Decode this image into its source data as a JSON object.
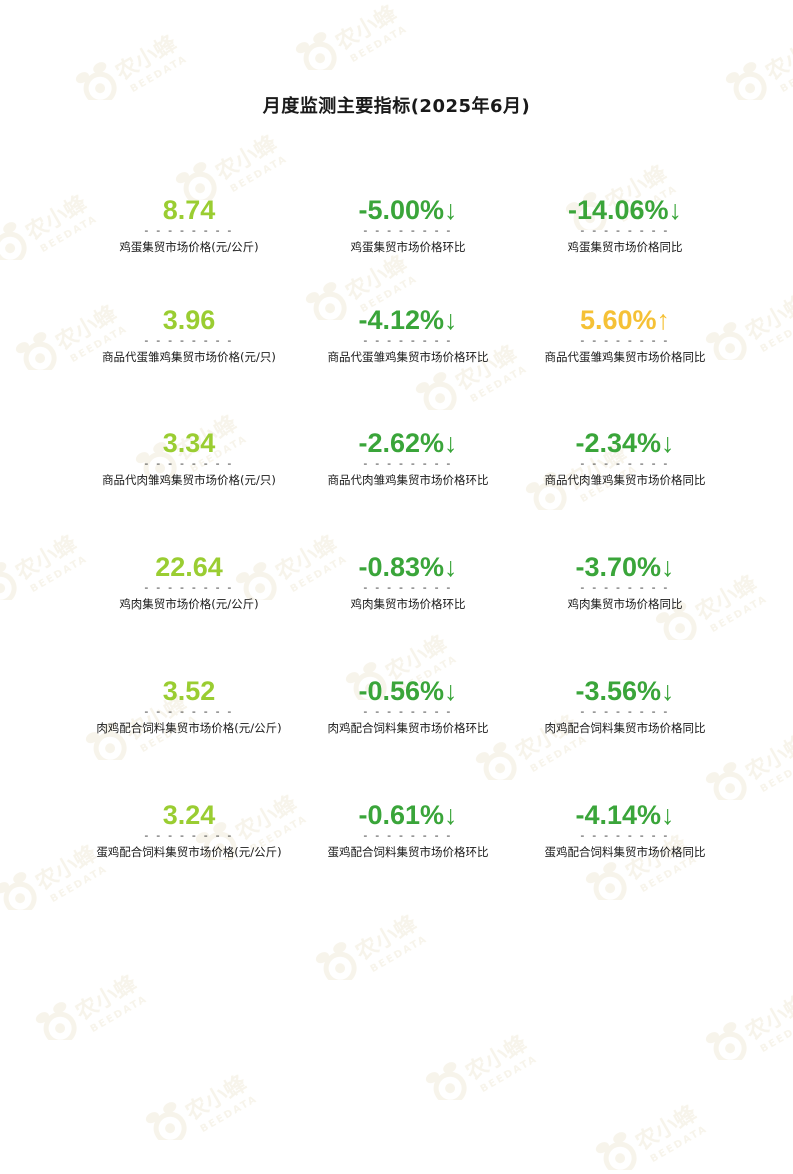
{
  "title": "月度监测主要指标(2025年6月)",
  "colors": {
    "price": "#9acd32",
    "down": "#3aa53a",
    "up": "#f5c136",
    "watermark": "#f2ecdc"
  },
  "watermark": {
    "text_cn": "农小蜂",
    "text_en": "BEEDATA"
  },
  "separator": "- - - - - - - -",
  "rows": [
    {
      "price": {
        "value": "8.74",
        "label": "鸡蛋集贸市场价格(元/公斤)"
      },
      "mom": {
        "value": "-5.00%",
        "arrow": "↓",
        "trend": "down",
        "label": "鸡蛋集贸市场价格环比"
      },
      "yoy": {
        "value": "-14.06%",
        "arrow": "↓",
        "trend": "down",
        "label": "鸡蛋集贸市场价格同比"
      }
    },
    {
      "price": {
        "value": "3.96",
        "label": "商品代蛋雏鸡集贸市场价格(元/只)"
      },
      "mom": {
        "value": "-4.12%",
        "arrow": "↓",
        "trend": "down",
        "label": "商品代蛋雏鸡集贸市场价格环比"
      },
      "yoy": {
        "value": "5.60%",
        "arrow": "↑",
        "trend": "up",
        "label": "商品代蛋雏鸡集贸市场价格同比"
      }
    },
    {
      "price": {
        "value": "3.34",
        "label": "商品代肉雏鸡集贸市场价格(元/只)"
      },
      "mom": {
        "value": "-2.62%",
        "arrow": "↓",
        "trend": "down",
        "label": "商品代肉雏鸡集贸市场价格环比"
      },
      "yoy": {
        "value": "-2.34%",
        "arrow": "↓",
        "trend": "down",
        "label": "商品代肉雏鸡集贸市场价格同比"
      }
    },
    {
      "price": {
        "value": "22.64",
        "label": "鸡肉集贸市场价格(元/公斤)"
      },
      "mom": {
        "value": "-0.83%",
        "arrow": "↓",
        "trend": "down",
        "label": "鸡肉集贸市场价格环比"
      },
      "yoy": {
        "value": "-3.70%",
        "arrow": "↓",
        "trend": "down",
        "label": "鸡肉集贸市场价格同比"
      }
    },
    {
      "price": {
        "value": "3.52",
        "label": "肉鸡配合饲料集贸市场价格(元/公斤)"
      },
      "mom": {
        "value": "-0.56%",
        "arrow": "↓",
        "trend": "down",
        "label": "肉鸡配合饲料集贸市场价格环比"
      },
      "yoy": {
        "value": "-3.56%",
        "arrow": "↓",
        "trend": "down",
        "label": "肉鸡配合饲料集贸市场价格同比"
      }
    },
    {
      "price": {
        "value": "3.24",
        "label": "蛋鸡配合饲料集贸市场价格(元/公斤)"
      },
      "mom": {
        "value": "-0.61%",
        "arrow": "↓",
        "trend": "down",
        "label": "蛋鸡配合饲料集贸市场价格环比"
      },
      "yoy": {
        "value": "-4.14%",
        "arrow": "↓",
        "trend": "down",
        "label": "蛋鸡配合饲料集贸市场价格同比"
      }
    }
  ]
}
